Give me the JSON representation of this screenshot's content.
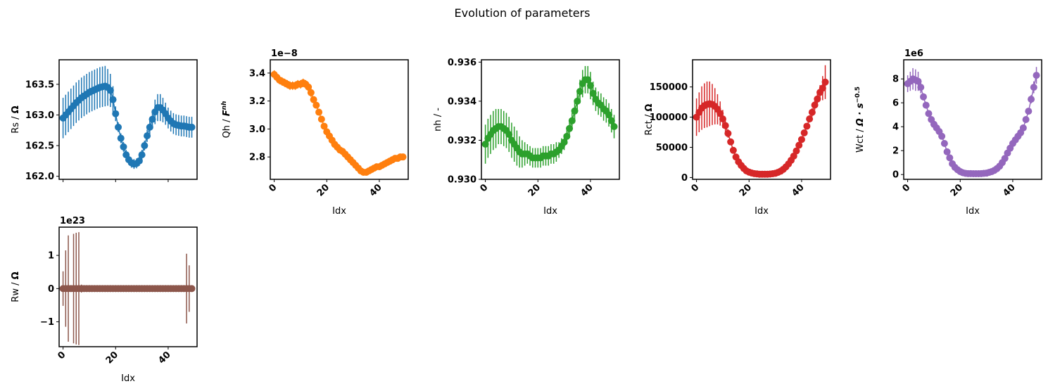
{
  "figure": {
    "title": "Evolution of parameters",
    "xlabel": "Idx"
  },
  "chart_data": [
    {
      "type": "scatter",
      "key": "rs",
      "ylabel": "Rs / Ω",
      "ylabel_parts": [
        {
          "t": "Rs / "
        },
        {
          "t": "Ω",
          "bold": true
        }
      ],
      "offset": "",
      "color": "#1f77b4",
      "xlim": [
        -1.5,
        51
      ],
      "ylim": [
        161.95,
        163.9
      ],
      "xticks": [
        0,
        20,
        40
      ],
      "xtick_labels_visible": false,
      "yticks": [
        162.0,
        162.5,
        163.0,
        163.5
      ],
      "ytick_labels": [
        "162.0",
        "162.5",
        "163.0",
        "163.5"
      ],
      "x": [
        0,
        1,
        2,
        3,
        4,
        5,
        6,
        7,
        8,
        9,
        10,
        11,
        12,
        13,
        14,
        15,
        16,
        17,
        18,
        19,
        20,
        21,
        22,
        23,
        24,
        25,
        26,
        27,
        28,
        29,
        30,
        31,
        32,
        33,
        34,
        35,
        36,
        37,
        38,
        39,
        40,
        41,
        42,
        43,
        44,
        45,
        46,
        47,
        48,
        49
      ],
      "y": [
        162.95,
        163.0,
        163.05,
        163.1,
        163.15,
        163.2,
        163.24,
        163.28,
        163.31,
        163.34,
        163.37,
        163.39,
        163.41,
        163.43,
        163.45,
        163.46,
        163.47,
        163.45,
        163.4,
        163.25,
        163.02,
        162.8,
        162.62,
        162.48,
        162.35,
        162.27,
        162.22,
        162.2,
        162.21,
        162.25,
        162.35,
        162.5,
        162.66,
        162.8,
        162.93,
        163.05,
        163.12,
        163.12,
        163.08,
        163.02,
        162.95,
        162.9,
        162.86,
        162.84,
        162.83,
        162.82,
        162.82,
        162.81,
        162.8,
        162.8
      ],
      "yerr": [
        0.33,
        0.33,
        0.33,
        0.33,
        0.33,
        0.33,
        0.33,
        0.33,
        0.33,
        0.33,
        0.33,
        0.33,
        0.33,
        0.33,
        0.33,
        0.33,
        0.33,
        0.3,
        0.27,
        0.22,
        0.12,
        0.08,
        0.08,
        0.08,
        0.08,
        0.08,
        0.08,
        0.08,
        0.08,
        0.08,
        0.08,
        0.08,
        0.1,
        0.12,
        0.15,
        0.2,
        0.22,
        0.22,
        0.2,
        0.18,
        0.17,
        0.17,
        0.17,
        0.17,
        0.17,
        0.17,
        0.17,
        0.17,
        0.17,
        0.17
      ]
    },
    {
      "type": "scatter",
      "key": "qh",
      "ylabel": "Qh / F^nh",
      "ylabel_parts": [
        {
          "t": "Qh / "
        },
        {
          "t": "F",
          "bold": true,
          "italic": true
        },
        {
          "t": "nh",
          "sup": true,
          "bold": true,
          "italic": true
        }
      ],
      "offset": "1e−8",
      "color": "#ff7f0e",
      "xlim": [
        -1.5,
        51
      ],
      "ylim": [
        2.64,
        3.495
      ],
      "xticks": [
        0,
        20,
        40
      ],
      "xtick_labels_visible": true,
      "yticks": [
        2.8,
        3.0,
        3.2,
        3.4
      ],
      "ytick_labels": [
        "2.8",
        "3.0",
        "3.2",
        "3.4"
      ],
      "x": [
        0,
        1,
        2,
        3,
        4,
        5,
        6,
        7,
        8,
        9,
        10,
        11,
        12,
        13,
        14,
        15,
        16,
        17,
        18,
        19,
        20,
        21,
        22,
        23,
        24,
        25,
        26,
        27,
        28,
        29,
        30,
        31,
        32,
        33,
        34,
        35,
        36,
        37,
        38,
        39,
        40,
        41,
        42,
        43,
        44,
        45,
        46,
        47,
        48,
        49
      ],
      "y": [
        3.39,
        3.37,
        3.35,
        3.34,
        3.33,
        3.32,
        3.31,
        3.31,
        3.31,
        3.32,
        3.32,
        3.33,
        3.32,
        3.3,
        3.26,
        3.21,
        3.17,
        3.12,
        3.07,
        3.02,
        2.98,
        2.95,
        2.92,
        2.89,
        2.87,
        2.85,
        2.84,
        2.82,
        2.8,
        2.78,
        2.76,
        2.74,
        2.72,
        2.7,
        2.69,
        2.69,
        2.7,
        2.71,
        2.72,
        2.73,
        2.73,
        2.74,
        2.75,
        2.76,
        2.77,
        2.78,
        2.79,
        2.79,
        2.8,
        2.8
      ],
      "yerr": [
        0.03,
        0.03,
        0.03,
        0.03,
        0.03,
        0.03,
        0.03,
        0.03,
        0.03,
        0.03,
        0.03,
        0.03,
        0.03,
        0.03,
        0.03,
        0.02,
        0.02,
        0.02,
        0.02,
        0.02,
        0.02,
        0.02,
        0.02,
        0.02,
        0.02,
        0.02,
        0.02,
        0.02,
        0.02,
        0.02,
        0.02,
        0.02,
        0.02,
        0.02,
        0.02,
        0.02,
        0.02,
        0.02,
        0.02,
        0.02,
        0.02,
        0.02,
        0.02,
        0.02,
        0.02,
        0.02,
        0.02,
        0.02,
        0.02,
        0.02
      ]
    },
    {
      "type": "scatter",
      "key": "nh",
      "ylabel": "nh / -",
      "ylabel_parts": [
        {
          "t": "nh / -"
        }
      ],
      "offset": "",
      "color": "#2ca02c",
      "xlim": [
        -1.5,
        51
      ],
      "ylim": [
        0.93,
        0.93612
      ],
      "xticks": [
        0,
        20,
        40
      ],
      "xtick_labels_visible": true,
      "yticks": [
        0.93,
        0.932,
        0.934,
        0.936
      ],
      "ytick_labels": [
        "0.930",
        "0.932",
        "0.934",
        "0.936"
      ],
      "x": [
        0,
        1,
        2,
        3,
        4,
        5,
        6,
        7,
        8,
        9,
        10,
        11,
        12,
        13,
        14,
        15,
        16,
        17,
        18,
        19,
        20,
        21,
        22,
        23,
        24,
        25,
        26,
        27,
        28,
        29,
        30,
        31,
        32,
        33,
        34,
        35,
        36,
        37,
        38,
        39,
        40,
        41,
        42,
        43,
        44,
        45,
        46,
        47,
        48,
        49
      ],
      "y": [
        0.9318,
        0.9321,
        0.9323,
        0.9325,
        0.9326,
        0.9327,
        0.9327,
        0.9326,
        0.9325,
        0.9323,
        0.932,
        0.9318,
        0.9316,
        0.9314,
        0.9313,
        0.9313,
        0.9313,
        0.9312,
        0.9311,
        0.9311,
        0.9311,
        0.9311,
        0.9312,
        0.9312,
        0.9312,
        0.9313,
        0.9313,
        0.9314,
        0.9315,
        0.9317,
        0.9319,
        0.9322,
        0.9326,
        0.933,
        0.9335,
        0.934,
        0.9345,
        0.9349,
        0.9351,
        0.9351,
        0.9348,
        0.9344,
        0.9341,
        0.9339,
        0.9338,
        0.9336,
        0.9335,
        0.9333,
        0.933,
        0.9327
      ],
      "yerr": [
        0.001,
        0.001,
        0.001,
        0.001,
        0.001,
        0.0009,
        0.0009,
        0.0009,
        0.0009,
        0.0009,
        0.0009,
        0.0009,
        0.0009,
        0.0008,
        0.0007,
        0.0006,
        0.0005,
        0.0005,
        0.0005,
        0.0005,
        0.0005,
        0.0005,
        0.0005,
        0.0005,
        0.0005,
        0.0005,
        0.0005,
        0.0005,
        0.0004,
        0.0004,
        0.0004,
        0.0004,
        0.0004,
        0.0004,
        0.0005,
        0.0005,
        0.0006,
        0.0007,
        0.0007,
        0.0007,
        0.0007,
        0.0006,
        0.0006,
        0.0006,
        0.0006,
        0.0006,
        0.0006,
        0.0006,
        0.0006,
        0.0006
      ]
    },
    {
      "type": "scatter",
      "key": "rct",
      "ylabel": "Rct / Ω",
      "ylabel_parts": [
        {
          "t": "Rct / "
        },
        {
          "t": "Ω",
          "bold": true
        }
      ],
      "offset": "",
      "color": "#d62728",
      "xlim": [
        -1.5,
        51
      ],
      "ylim": [
        -3000,
        195000
      ],
      "xticks": [
        0,
        20,
        40
      ],
      "xtick_labels_visible": true,
      "yticks": [
        0,
        50000,
        100000,
        150000
      ],
      "ytick_labels": [
        "0",
        "50000",
        "100000",
        "150000"
      ],
      "x": [
        0,
        1,
        2,
        3,
        4,
        5,
        6,
        7,
        8,
        9,
        10,
        11,
        12,
        13,
        14,
        15,
        16,
        17,
        18,
        19,
        20,
        21,
        22,
        23,
        24,
        25,
        26,
        27,
        28,
        29,
        30,
        31,
        32,
        33,
        34,
        35,
        36,
        37,
        38,
        39,
        40,
        41,
        42,
        43,
        44,
        45,
        46,
        47,
        48,
        49
      ],
      "y": [
        100000,
        108000,
        115000,
        119000,
        121000,
        122000,
        121000,
        118000,
        113000,
        106000,
        97000,
        86000,
        73000,
        59000,
        45000,
        34000,
        26000,
        20000,
        15000,
        11000,
        9000,
        7500,
        6500,
        6000,
        5500,
        5500,
        5500,
        5500,
        5800,
        6300,
        7000,
        8500,
        10500,
        13500,
        17500,
        22500,
        28500,
        35500,
        44000,
        53500,
        63000,
        74000,
        85000,
        97000,
        108000,
        120000,
        130000,
        141000,
        148000,
        158000
      ],
      "yerr": [
        31000,
        33000,
        36000,
        37000,
        38000,
        37000,
        34000,
        30000,
        25000,
        20000,
        15000,
        11000,
        7000,
        4500,
        3000,
        2500,
        2000,
        1500,
        1200,
        1000,
        800,
        700,
        600,
        600,
        600,
        600,
        600,
        600,
        600,
        600,
        700,
        800,
        900,
        1000,
        1200,
        1500,
        2000,
        2500,
        3000,
        3500,
        4000,
        4500,
        5000,
        6000,
        7000,
        8000,
        9000,
        12000,
        20000,
        28000
      ]
    },
    {
      "type": "scatter",
      "key": "wct",
      "ylabel": "Wct / Ω·s^−0.5",
      "ylabel_parts": [
        {
          "t": "Wct / "
        },
        {
          "t": "Ω · s",
          "bold": true,
          "italic": true
        },
        {
          "t": "−0.5",
          "sup": true,
          "bold": true
        }
      ],
      "offset": "1e6",
      "color": "#9467bd",
      "xlim": [
        -1.5,
        51
      ],
      "ylim": [
        -0.4,
        9.6
      ],
      "xticks": [
        0,
        20,
        40
      ],
      "xtick_labels_visible": true,
      "yticks": [
        0,
        2,
        4,
        6,
        8
      ],
      "ytick_labels": [
        "0",
        "2",
        "4",
        "6",
        "8"
      ],
      "x": [
        0,
        1,
        2,
        3,
        4,
        5,
        6,
        7,
        8,
        9,
        10,
        11,
        12,
        13,
        14,
        15,
        16,
        17,
        18,
        19,
        20,
        21,
        22,
        23,
        24,
        25,
        26,
        27,
        28,
        29,
        30,
        31,
        32,
        33,
        34,
        35,
        36,
        37,
        38,
        39,
        40,
        41,
        42,
        43,
        44,
        45,
        46,
        47,
        48,
        49
      ],
      "y": [
        7.6,
        7.8,
        8.0,
        7.9,
        7.8,
        7.3,
        6.5,
        5.8,
        5.1,
        4.6,
        4.2,
        3.9,
        3.6,
        3.2,
        2.6,
        1.9,
        1.4,
        0.9,
        0.6,
        0.4,
        0.25,
        0.15,
        0.1,
        0.08,
        0.08,
        0.07,
        0.07,
        0.07,
        0.08,
        0.1,
        0.12,
        0.18,
        0.25,
        0.35,
        0.5,
        0.7,
        1.0,
        1.35,
        1.8,
        2.2,
        2.6,
        2.9,
        3.2,
        3.5,
        3.9,
        4.6,
        5.3,
        6.3,
        7.3,
        8.3
      ],
      "yerr": [
        0.7,
        0.8,
        0.9,
        0.9,
        0.8,
        0.5,
        0.3,
        0.2,
        0.15,
        0.12,
        0.1,
        0.1,
        0.1,
        0.1,
        0.08,
        0.06,
        0.05,
        0.04,
        0.03,
        0.02,
        0.02,
        0.02,
        0.02,
        0.02,
        0.02,
        0.02,
        0.02,
        0.02,
        0.02,
        0.02,
        0.02,
        0.02,
        0.02,
        0.03,
        0.03,
        0.04,
        0.05,
        0.06,
        0.08,
        0.1,
        0.12,
        0.12,
        0.13,
        0.14,
        0.15,
        0.2,
        0.25,
        0.35,
        0.5,
        0.7
      ]
    },
    {
      "type": "scatter",
      "key": "rw",
      "ylabel": "Rw / Ω",
      "ylabel_parts": [
        {
          "t": "Rw / "
        },
        {
          "t": "Ω",
          "bold": true
        }
      ],
      "offset": "1e23",
      "color": "#8c564b",
      "xlim": [
        -1.5,
        51
      ],
      "ylim": [
        -1.75,
        1.85
      ],
      "xticks": [
        0,
        20,
        40
      ],
      "xtick_labels_visible": true,
      "yticks": [
        -1,
        0,
        1
      ],
      "ytick_labels": [
        "−1",
        "0",
        "1"
      ],
      "x": [
        0,
        1,
        2,
        3,
        4,
        5,
        6,
        7,
        8,
        9,
        10,
        11,
        12,
        13,
        14,
        15,
        16,
        17,
        18,
        19,
        20,
        21,
        22,
        23,
        24,
        25,
        26,
        27,
        28,
        29,
        30,
        31,
        32,
        33,
        34,
        35,
        36,
        37,
        38,
        39,
        40,
        41,
        42,
        43,
        44,
        45,
        46,
        47,
        48,
        49
      ],
      "y": [
        0,
        0,
        0,
        0,
        0,
        0,
        0,
        0,
        0,
        0,
        0,
        0,
        0,
        0,
        0,
        0,
        0,
        0,
        0,
        0,
        0,
        0,
        0,
        0,
        0,
        0,
        0,
        0,
        0,
        0,
        0,
        0,
        0,
        0,
        0,
        0,
        0,
        0,
        0,
        0,
        0,
        0,
        0,
        0,
        0,
        0,
        0,
        0,
        0,
        0
      ],
      "yerr": [
        0.52,
        1.15,
        1.6,
        0.08,
        1.65,
        1.68,
        1.7,
        0.12,
        0,
        0,
        0,
        0,
        0,
        0,
        0,
        0,
        0,
        0,
        0,
        0,
        0,
        0,
        0,
        0,
        0,
        0,
        0,
        0,
        0,
        0,
        0,
        0,
        0,
        0,
        0,
        0,
        0,
        0,
        0,
        0,
        0,
        0,
        0,
        0,
        0,
        0,
        0,
        1.05,
        0.7,
        0
      ]
    }
  ]
}
